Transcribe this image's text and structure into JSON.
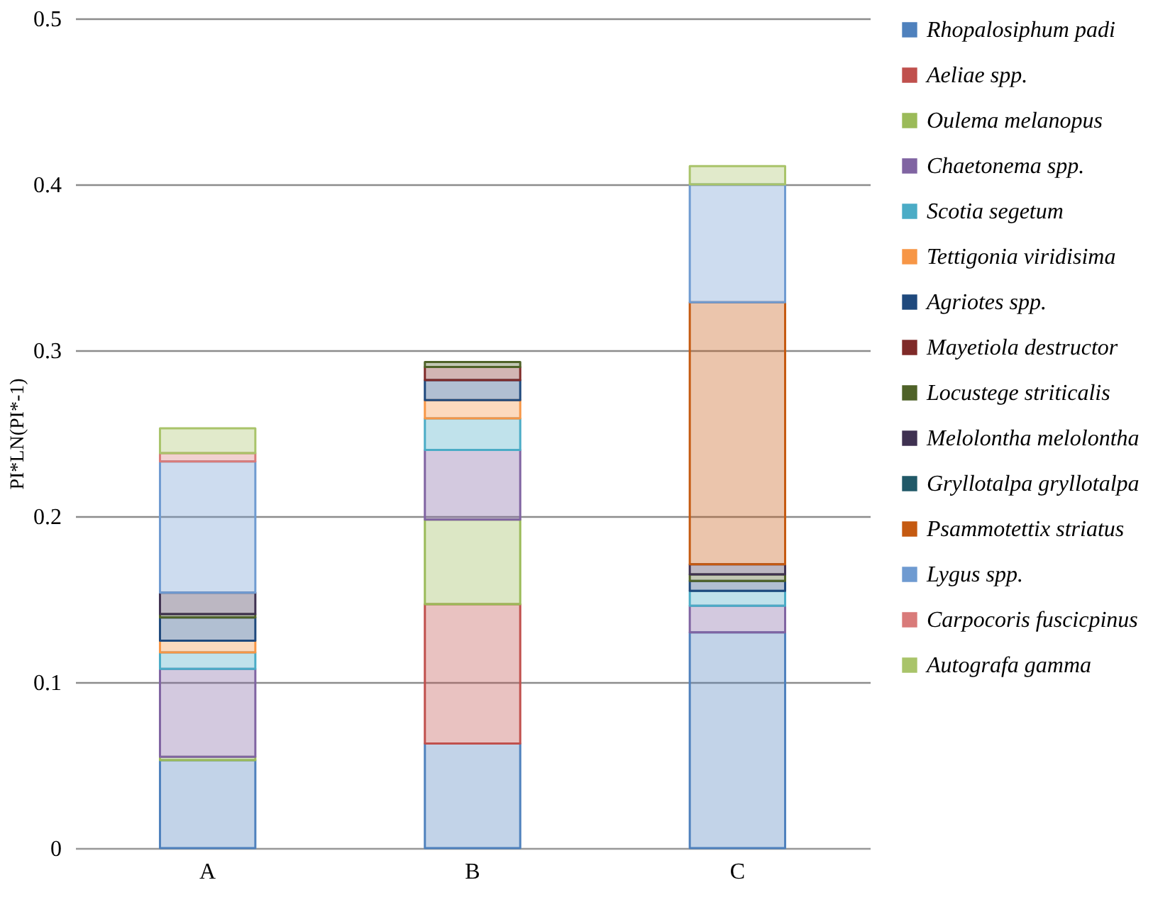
{
  "chart_data": {
    "type": "bar",
    "stacked": true,
    "ylabel": "PI*LN(PI*-1)",
    "categories": [
      "A",
      "B",
      "C"
    ],
    "series": [
      {
        "name": "Rhopalosiphum padi",
        "color": "#4f81bd",
        "values": [
          0.053,
          0.063,
          0.13
        ]
      },
      {
        "name": "Aeliae spp.",
        "color": "#c0504d",
        "values": [
          null,
          0.084,
          null
        ]
      },
      {
        "name": "Oulema melanopus",
        "color": "#9bbb59",
        "values": [
          0.002,
          0.051,
          null
        ]
      },
      {
        "name": "Chaetonema spp.",
        "color": "#8064a2",
        "values": [
          0.053,
          0.042,
          0.016
        ]
      },
      {
        "name": "Scotia segetum",
        "color": "#4bacc6",
        "values": [
          0.01,
          0.019,
          0.009
        ]
      },
      {
        "name": "Tettigonia viridisima",
        "color": "#f79646",
        "values": [
          0.007,
          0.011,
          null
        ]
      },
      {
        "name": "Agriotes spp.",
        "color": "#1f497d",
        "values": [
          0.014,
          0.012,
          0.006
        ]
      },
      {
        "name": "Mayetiola destructor",
        "color": "#7f2a28",
        "values": [
          null,
          0.008,
          null
        ]
      },
      {
        "name": "Locustege striticalis",
        "color": "#4f6228",
        "values": [
          0.002,
          0.003,
          0.004
        ]
      },
      {
        "name": "Melolontha melolontha",
        "color": "#3f3151",
        "values": [
          0.013,
          null,
          0.006
        ]
      },
      {
        "name": "Gryllotalpa gryllotalpa",
        "color": "#215968",
        "values": [
          null,
          null,
          null
        ]
      },
      {
        "name": "Psammotettix striatus",
        "color": "#c55a11",
        "values": [
          null,
          null,
          0.158
        ]
      },
      {
        "name": "Lygus spp.",
        "color": "#6f9bd1",
        "values": [
          0.079,
          null,
          0.071
        ]
      },
      {
        "name": "Carpocoris fuscicpinus",
        "color": "#d97b7a",
        "values": [
          0.005,
          null,
          null
        ]
      },
      {
        "name": "Autografa gamma",
        "color": "#a9c46a",
        "values": [
          0.015,
          null,
          0.011
        ]
      }
    ],
    "ylim": [
      0,
      0.5
    ],
    "yticks": [
      0,
      0.1,
      0.2,
      0.3,
      0.4,
      0.5
    ],
    "grid": "y",
    "legend": "right"
  }
}
